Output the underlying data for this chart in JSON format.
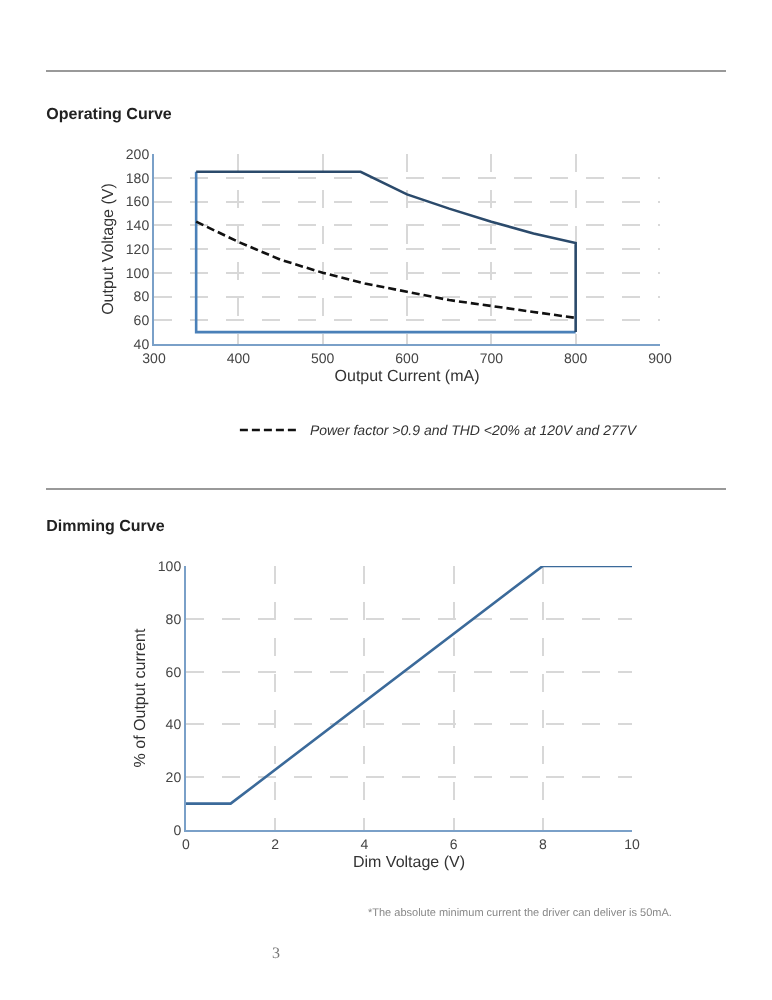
{
  "chart_data": [
    {
      "type": "line",
      "title": "Operating Curve",
      "xlabel": "Output Current (mA)",
      "ylabel": "Output Voltage (V)",
      "xlim": [
        300,
        900
      ],
      "xticks": [
        300,
        400,
        500,
        600,
        700,
        800,
        900
      ],
      "ylim": [
        40,
        200
      ],
      "yticks": [
        40,
        60,
        80,
        100,
        120,
        140,
        160,
        180,
        200
      ],
      "grid": true,
      "legend": "bottom",
      "marker": "none",
      "series": [
        {
          "color": "#4a80b8",
          "x": [
            800,
            350,
            350
          ],
          "values": [
            50,
            50,
            185
          ],
          "line_style": "solid"
        },
        {
          "color": "#2b4a6b",
          "x": [
            350,
            545,
            600,
            650,
            700,
            750,
            800,
            800
          ],
          "values": [
            185,
            185,
            166,
            154,
            143,
            133,
            125,
            50
          ],
          "line_style": "solid"
        },
        {
          "name": "Power factor >0.9 and THD <20% at 120V and 277V",
          "color": "#111111",
          "x": [
            350,
            400,
            450,
            500,
            550,
            600,
            650,
            700,
            750,
            800
          ],
          "values": [
            143,
            126,
            111,
            100,
            91,
            84,
            77,
            72,
            67,
            62
          ],
          "line_style": "dashed"
        }
      ]
    },
    {
      "type": "line",
      "title": "Dimming Curve",
      "xlabel": "Dim Voltage (V)",
      "ylabel": "% of Output current",
      "xlim": [
        0,
        10
      ],
      "xticks": [
        0,
        2,
        4,
        6,
        8,
        10
      ],
      "ylim": [
        0,
        100
      ],
      "yticks": [
        0,
        20,
        40,
        60,
        80,
        100
      ],
      "grid": true,
      "marker": "none",
      "annotations": [
        "*The absolute minimum current the driver can deliver is 50mA.",
        "3"
      ],
      "series": [
        {
          "color": "#3b6a9a",
          "x": [
            0,
            1,
            8,
            10
          ],
          "values": [
            10,
            10,
            100,
            100
          ],
          "line_style": "solid"
        }
      ]
    }
  ]
}
